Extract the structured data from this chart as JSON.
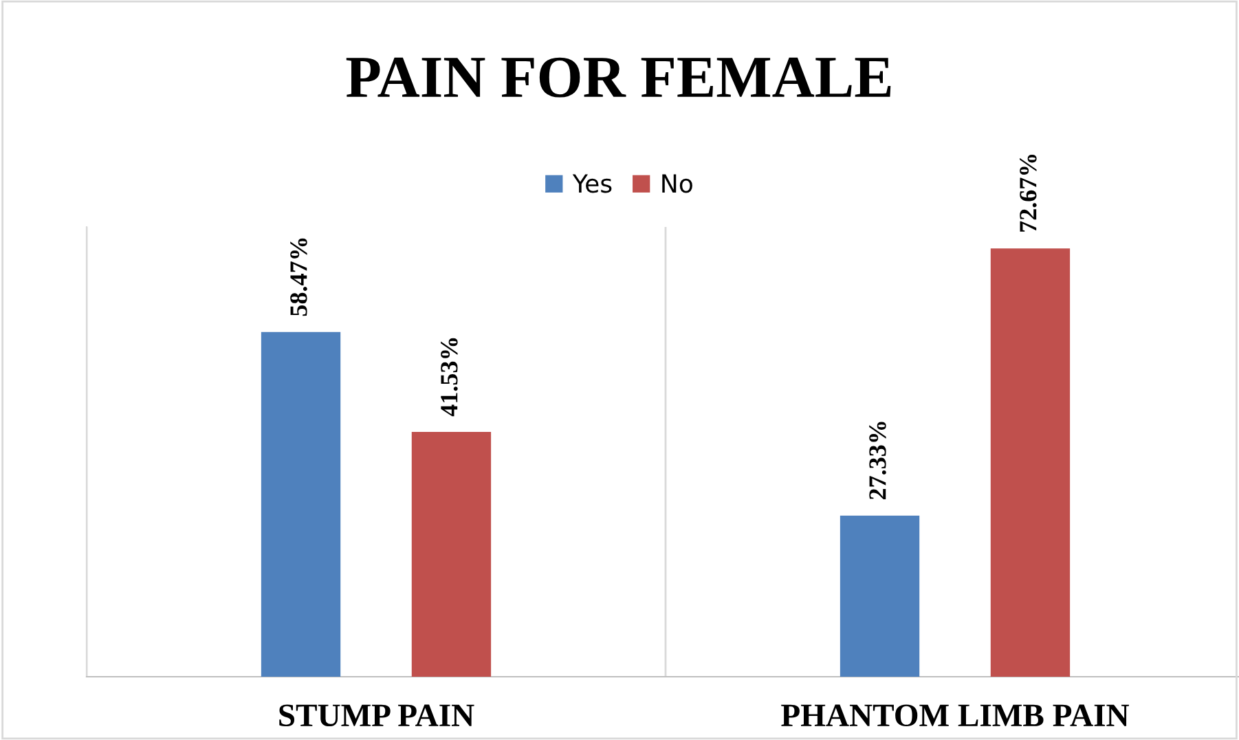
{
  "chart_data": {
    "type": "bar",
    "title": "PAIN FOR FEMALE",
    "categories": [
      "STUMP PAIN",
      "PHANTOM LIMB PAIN"
    ],
    "series": [
      {
        "name": "Yes",
        "color": "#4f81bd",
        "values": [
          58.47,
          27.33
        ],
        "value_labels": [
          "58.47%",
          "27.33%"
        ]
      },
      {
        "name": "No",
        "color": "#c0504d",
        "values": [
          41.53,
          72.67
        ],
        "value_labels": [
          "41.53%",
          "72.67%"
        ]
      }
    ],
    "legend": "top",
    "grid": "x"
  }
}
